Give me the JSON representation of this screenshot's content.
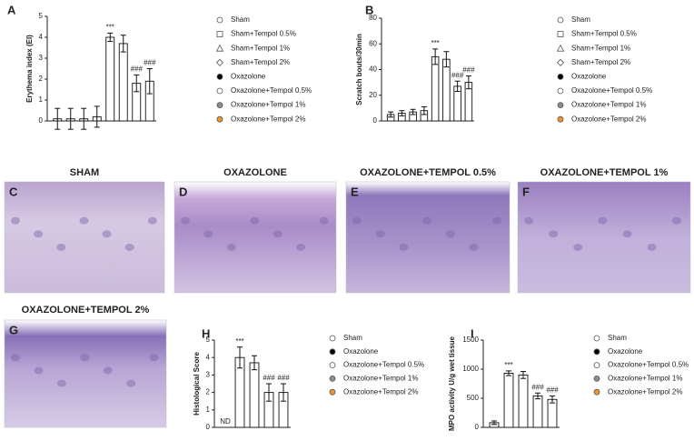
{
  "chart_data": [
    {
      "type": "bar",
      "panel": "A",
      "ylabel": "Erythema index (EI)",
      "categories": [
        "Sham",
        "Sham+Tempol 0.5%",
        "Sham+Tempol 1%",
        "Sham+Tempol 2%",
        "Oxazolone",
        "Oxazolone+Tempol 0.5%",
        "Oxazolone+Tempol 1%",
        "Oxazolone+Tempol 2%"
      ],
      "values": [
        0.1,
        0.1,
        0.1,
        0.2,
        4.0,
        3.7,
        1.8,
        1.9
      ],
      "errors": [
        0.5,
        0.5,
        0.5,
        0.5,
        0.2,
        0.4,
        0.4,
        0.6
      ],
      "significance": [
        null,
        null,
        null,
        null,
        "***",
        null,
        "###",
        "###"
      ],
      "markers": [
        "circle",
        "square",
        "triangle",
        "diamond",
        "circle",
        "circle",
        "circle",
        "circle"
      ],
      "point_colors": [
        "#ffffff",
        "#ffffff",
        "#ffffff",
        "#ffffff",
        "#000000",
        "#ffffff",
        "#8c8c8c",
        "#f0962a"
      ],
      "color": "#ffffff",
      "ylim": [
        0,
        5
      ],
      "yticks": [
        0,
        1,
        2,
        3,
        4,
        5
      ]
    },
    {
      "type": "bar",
      "panel": "B",
      "ylabel": "Scratch bouts/30min",
      "categories": [
        "Sham",
        "Sham+Tempol 0.5%",
        "Sham+Tempol 1%",
        "Sham+Tempol 2%",
        "Oxazolone",
        "Oxazolone+Tempol 0.5%",
        "Oxazolone+Tempol 1%",
        "Oxazolone+Tempol 2%"
      ],
      "values": [
        5,
        6,
        7,
        8,
        50,
        48,
        27,
        30
      ],
      "errors": [
        2,
        2,
        2,
        3,
        6,
        6,
        4,
        5
      ],
      "significance": [
        null,
        null,
        null,
        null,
        "***",
        null,
        "###",
        "###"
      ],
      "markers": [
        "circle",
        "square",
        "triangle",
        "diamond",
        "circle",
        "circle",
        "circle",
        "circle"
      ],
      "point_colors": [
        "#ffffff",
        "#ffffff",
        "#ffffff",
        "#ffffff",
        "#000000",
        "#ffffff",
        "#8c8c8c",
        "#f0962a"
      ],
      "color": "#ffffff",
      "ylim": [
        0,
        80
      ],
      "yticks": [
        0,
        20,
        40,
        60,
        80
      ]
    },
    {
      "type": "bar",
      "panel": "H",
      "ylabel": "Histological Score",
      "categories": [
        "Sham",
        "Oxazolone",
        "Oxazolone+Tempol 0.5%",
        "Oxazolone+Tempol 1%",
        "Oxazolone+Tempol 2%"
      ],
      "values": [
        null,
        4.0,
        3.7,
        2.0,
        2.0
      ],
      "value_labels": [
        "ND",
        null,
        null,
        null,
        null
      ],
      "errors": [
        null,
        0.6,
        0.4,
        0.5,
        0.5
      ],
      "significance": [
        null,
        "***",
        null,
        "###",
        "###"
      ],
      "markers": [
        "circle",
        "circle",
        "circle",
        "circle",
        "circle"
      ],
      "point_colors": [
        "#ffffff",
        "#000000",
        "#ffffff",
        "#8c8c8c",
        "#f0962a"
      ],
      "color": "#ffffff",
      "ylim": [
        0,
        5
      ],
      "yticks": [
        0,
        1,
        2,
        3,
        4,
        5
      ]
    },
    {
      "type": "bar",
      "panel": "I",
      "ylabel": "MPO activity U/g wet tissue",
      "categories": [
        "Sham",
        "Oxazolone",
        "Oxazolone+Tempol 0.5%",
        "Oxazolone+Tempol 1%",
        "Oxazolone+Tempol 2%"
      ],
      "values": [
        80,
        930,
        900,
        540,
        480
      ],
      "errors": [
        30,
        40,
        60,
        50,
        60
      ],
      "significance": [
        null,
        "***",
        null,
        "###",
        "###"
      ],
      "markers": [
        "circle",
        "circle",
        "circle",
        "circle",
        "circle"
      ],
      "point_colors": [
        "#ffffff",
        "#000000",
        "#ffffff",
        "#8c8c8c",
        "#f0962a"
      ],
      "color": "#ffffff",
      "ylim": [
        0,
        1500
      ],
      "yticks": [
        0,
        500,
        1000,
        1500
      ]
    }
  ],
  "images": [
    {
      "letter": "C",
      "title": "SHAM"
    },
    {
      "letter": "D",
      "title": "OXAZOLONE"
    },
    {
      "letter": "E",
      "title": "OXAZOLONE+TEMPOL 0.5%"
    },
    {
      "letter": "F",
      "title": "OXAZOLONE+TEMPOL 1%"
    },
    {
      "letter": "G",
      "title": "OXAZOLONE+TEMPOL 2%"
    }
  ]
}
